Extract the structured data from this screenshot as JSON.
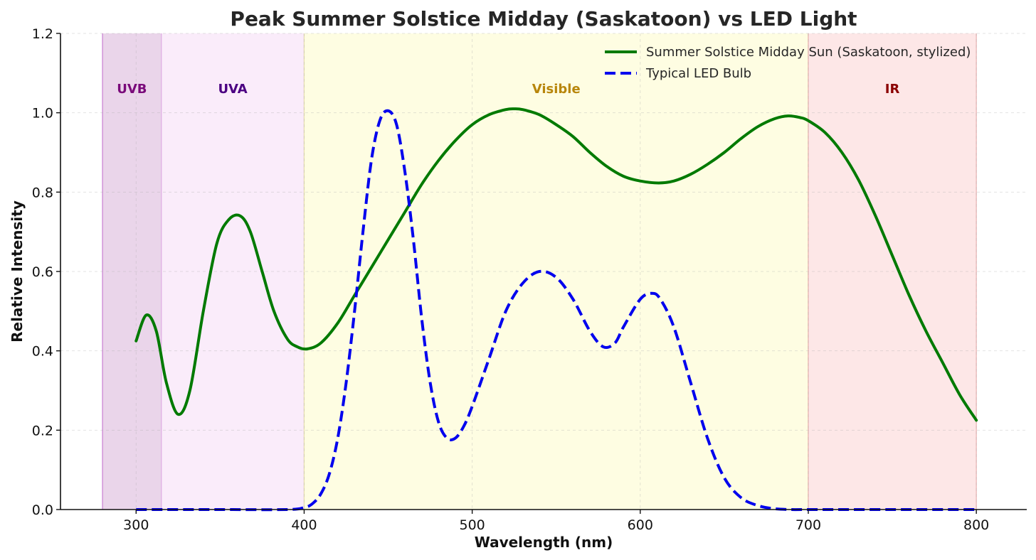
{
  "chart_data": {
    "type": "line",
    "title": "Peak Summer Solstice Midday (Saskatoon) vs LED Light",
    "xlabel": "Wavelength (nm)",
    "ylabel": "Relative Intensity",
    "xlim": [
      255,
      830
    ],
    "ylim": [
      0,
      1.2
    ],
    "xticks": [
      300,
      400,
      500,
      600,
      700,
      800
    ],
    "yticks": [
      0.0,
      0.2,
      0.4,
      0.6,
      0.8,
      1.0,
      1.2
    ],
    "xtick_labels": [
      "300",
      "400",
      "500",
      "600",
      "700",
      "800"
    ],
    "ytick_labels": [
      "0.0",
      "0.2",
      "0.4",
      "0.6",
      "0.8",
      "1.0",
      "1.2"
    ],
    "grid": true,
    "legend_position": "top-right",
    "regions": [
      {
        "label": "UVB",
        "x_start": 280,
        "x_end": 315,
        "fill": "#d9b3d9",
        "opacity": 0.55,
        "edge": "#c77dd1",
        "label_color": "#7a0a7a"
      },
      {
        "label": "UVA",
        "x_start": 315,
        "x_end": 400,
        "fill": "#f3d4f5",
        "opacity": 0.45,
        "edge": "#e2b6e5",
        "label_color": "#4b0082"
      },
      {
        "label": "Visible",
        "x_start": 400,
        "x_end": 700,
        "fill": "#fdfbcf",
        "opacity": 0.6,
        "edge": "#e8e2b0",
        "label_color": "#b8860b"
      },
      {
        "label": "IR",
        "x_start": 700,
        "x_end": 800,
        "fill": "#fbd4d4",
        "opacity": 0.55,
        "edge": "#e9b0b0",
        "label_color": "#8b0000"
      }
    ],
    "series": [
      {
        "name": "Summer Solstice Midday Sun (Saskatoon, stylized)",
        "color": "#007a00",
        "style": "solid",
        "x": [
          300,
          306,
          312,
          318,
          325,
          332,
          340,
          348,
          355,
          362,
          368,
          375,
          382,
          390,
          396,
          402,
          410,
          420,
          430,
          440,
          450,
          460,
          470,
          480,
          490,
          500,
          510,
          520,
          525,
          530,
          540,
          550,
          560,
          570,
          580,
          590,
          600,
          611,
          620,
          630,
          640,
          650,
          660,
          670,
          680,
          688,
          695,
          700,
          710,
          720,
          730,
          740,
          750,
          760,
          770,
          780,
          790,
          800
        ],
        "y": [
          0.425,
          0.49,
          0.45,
          0.32,
          0.24,
          0.3,
          0.5,
          0.67,
          0.73,
          0.74,
          0.7,
          0.6,
          0.5,
          0.43,
          0.41,
          0.405,
          0.42,
          0.47,
          0.54,
          0.61,
          0.68,
          0.75,
          0.82,
          0.88,
          0.93,
          0.97,
          0.995,
          1.008,
          1.01,
          1.008,
          0.995,
          0.97,
          0.94,
          0.9,
          0.865,
          0.84,
          0.828,
          0.823,
          0.828,
          0.845,
          0.87,
          0.9,
          0.935,
          0.965,
          0.985,
          0.992,
          0.988,
          0.98,
          0.95,
          0.9,
          0.83,
          0.74,
          0.64,
          0.54,
          0.45,
          0.37,
          0.29,
          0.225
        ]
      },
      {
        "name": "Typical LED Bulb",
        "color": "#0000ee",
        "style": "dashed",
        "x": [
          300,
          350,
          390,
          400,
          405,
          410,
          415,
          420,
          425,
          430,
          435,
          440,
          445,
          450,
          455,
          460,
          465,
          470,
          475,
          480,
          485,
          490,
          495,
          500,
          510,
          520,
          530,
          540,
          550,
          560,
          570,
          578,
          585,
          590,
          600,
          607,
          612,
          620,
          630,
          640,
          650,
          660,
          670,
          680,
          690,
          700,
          750,
          800
        ],
        "y": [
          0.0,
          0.0,
          0.0,
          0.005,
          0.015,
          0.04,
          0.09,
          0.18,
          0.32,
          0.5,
          0.7,
          0.88,
          0.98,
          1.005,
          0.97,
          0.85,
          0.68,
          0.48,
          0.32,
          0.22,
          0.18,
          0.18,
          0.21,
          0.26,
          0.38,
          0.5,
          0.57,
          0.6,
          0.585,
          0.53,
          0.45,
          0.41,
          0.42,
          0.46,
          0.53,
          0.545,
          0.53,
          0.46,
          0.32,
          0.18,
          0.08,
          0.03,
          0.01,
          0.002,
          0.0,
          0.0,
          0.0,
          0.0
        ]
      }
    ]
  }
}
